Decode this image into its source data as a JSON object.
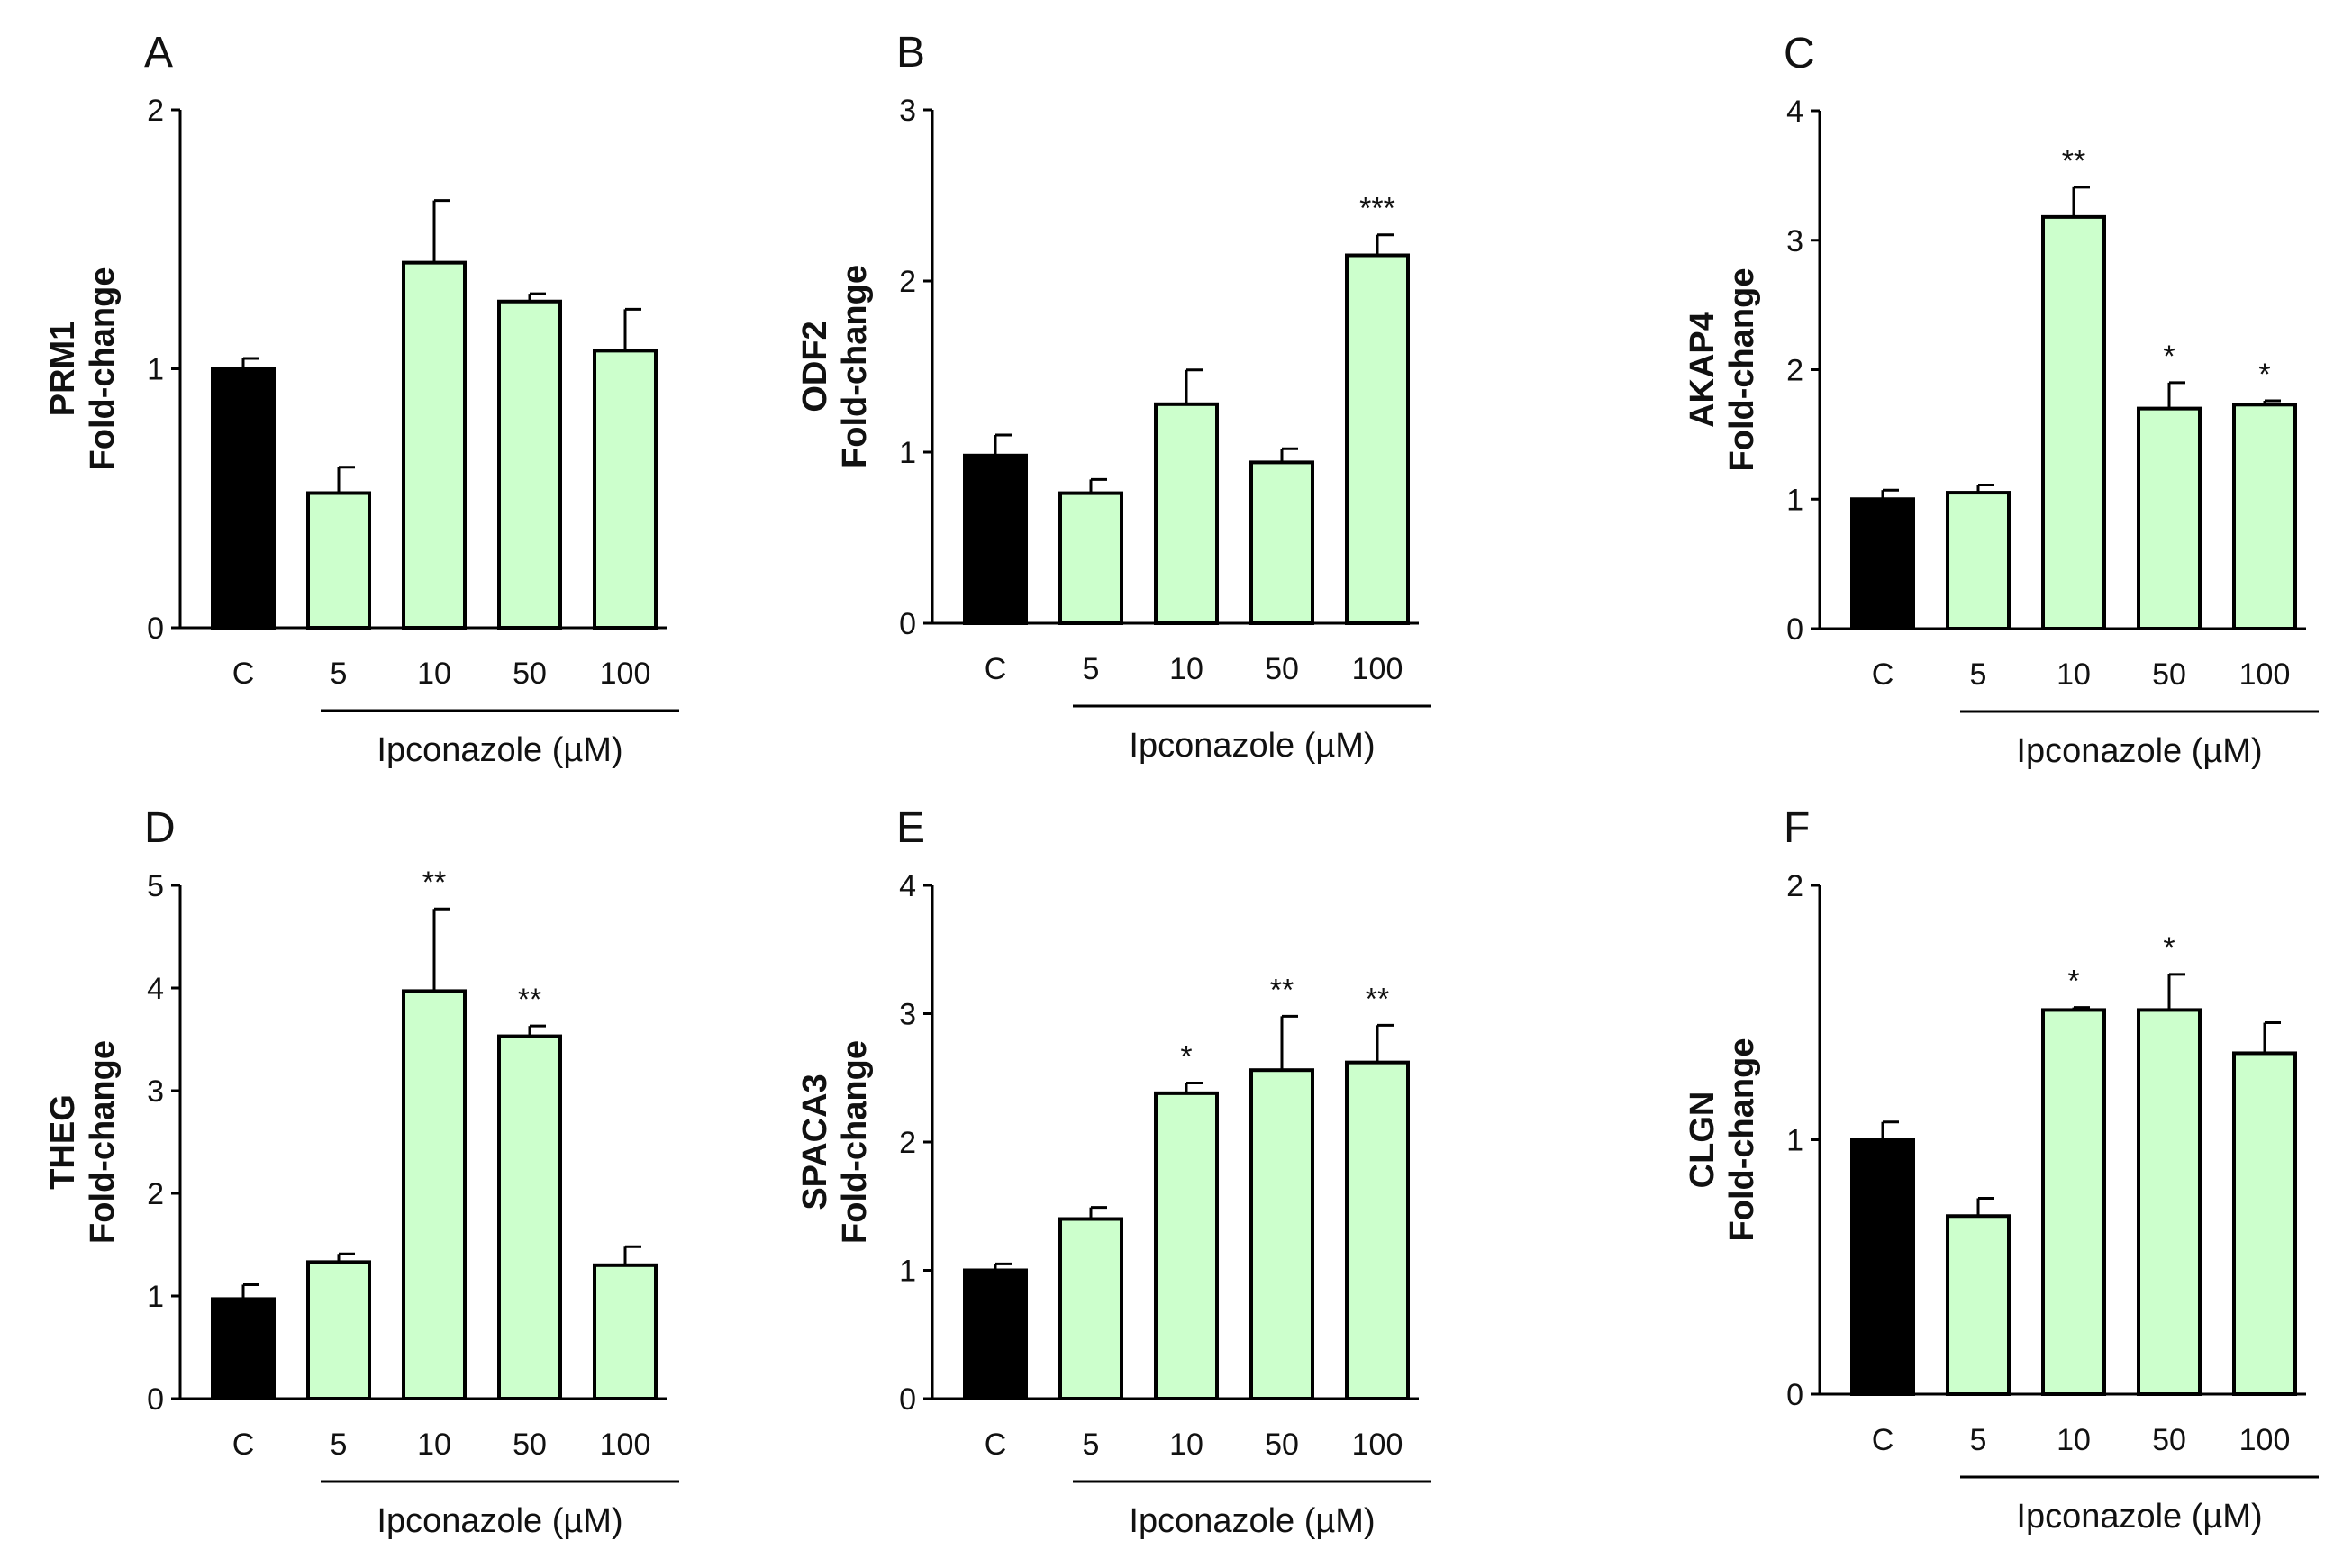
{
  "figure": {
    "colors": {
      "control": "#000000",
      "treatment": "#ccffcc",
      "outline": "#000000"
    }
  },
  "chart_data": [
    {
      "type": "bar",
      "panel": "A",
      "gene": "PRM1",
      "ylabel_unit": "Fold-change",
      "categories": [
        "C",
        "5",
        "10",
        "50",
        "100"
      ],
      "values": [
        1.0,
        0.52,
        1.41,
        1.26,
        1.07
      ],
      "errors": [
        0.04,
        0.1,
        0.24,
        0.03,
        0.16
      ],
      "significance": [
        "",
        "",
        "",
        "",
        ""
      ],
      "ylim": [
        0,
        2
      ],
      "yticks": [
        "0",
        "1",
        "2"
      ],
      "xlabel": "Ipconazole (µM)"
    },
    {
      "type": "bar",
      "panel": "B",
      "gene": "ODF2",
      "ylabel_unit": "Fold-change",
      "categories": [
        "C",
        "5",
        "10",
        "50",
        "100"
      ],
      "values": [
        0.98,
        0.76,
        1.28,
        0.94,
        2.15
      ],
      "errors": [
        0.12,
        0.08,
        0.2,
        0.08,
        0.12
      ],
      "significance": [
        "",
        "",
        "",
        "",
        "***"
      ],
      "ylim": [
        0,
        3
      ],
      "yticks": [
        "0",
        "1",
        "2",
        "3"
      ],
      "xlabel": "Ipconazole (µM)"
    },
    {
      "type": "bar",
      "panel": "C",
      "gene": "AKAP4",
      "ylabel_unit": "Fold-change",
      "categories": [
        "C",
        "5",
        "10",
        "50",
        "100"
      ],
      "values": [
        1.0,
        1.05,
        3.18,
        1.7,
        1.73
      ],
      "errors": [
        0.07,
        0.06,
        0.23,
        0.2,
        0.03
      ],
      "significance": [
        "",
        "",
        "**",
        "*",
        "*"
      ],
      "ylim": [
        0,
        4
      ],
      "yticks": [
        "0",
        "1",
        "2",
        "3",
        "4"
      ],
      "xlabel": "Ipconazole (µM)"
    },
    {
      "type": "bar",
      "panel": "D",
      "gene": "THEG",
      "ylabel_unit": "Fold-change",
      "categories": [
        "C",
        "5",
        "10",
        "50",
        "100"
      ],
      "values": [
        0.97,
        1.33,
        3.97,
        3.53,
        1.3
      ],
      "errors": [
        0.14,
        0.08,
        0.8,
        0.1,
        0.18
      ],
      "significance": [
        "",
        "",
        "**",
        "**",
        ""
      ],
      "ylim": [
        0,
        5
      ],
      "yticks": [
        "0",
        "1",
        "2",
        "3",
        "4",
        "5"
      ],
      "xlabel": "Ipconazole (µM)"
    },
    {
      "type": "bar",
      "panel": "E",
      "gene": "SPACA3",
      "ylabel_unit": "Fold-change",
      "categories": [
        "C",
        "5",
        "10",
        "50",
        "100"
      ],
      "values": [
        1.0,
        1.4,
        2.38,
        2.56,
        2.62
      ],
      "errors": [
        0.05,
        0.09,
        0.08,
        0.42,
        0.29
      ],
      "significance": [
        "",
        "",
        "*",
        "**",
        "**"
      ],
      "ylim": [
        0,
        4
      ],
      "yticks": [
        "0",
        "1",
        "2",
        "3",
        "4"
      ],
      "xlabel": "Ipconazole (µM)"
    },
    {
      "type": "bar",
      "panel": "F",
      "gene": "CLGN",
      "ylabel_unit": "Fold-change",
      "categories": [
        "C",
        "5",
        "10",
        "50",
        "100"
      ],
      "values": [
        1.0,
        0.7,
        1.51,
        1.51,
        1.34
      ],
      "errors": [
        0.07,
        0.07,
        0.01,
        0.14,
        0.12
      ],
      "significance": [
        "",
        "",
        "*",
        "*",
        ""
      ],
      "ylim": [
        0,
        2
      ],
      "yticks": [
        "0",
        "1",
        "2"
      ],
      "xlabel": "Ipconazole (µM)"
    }
  ]
}
